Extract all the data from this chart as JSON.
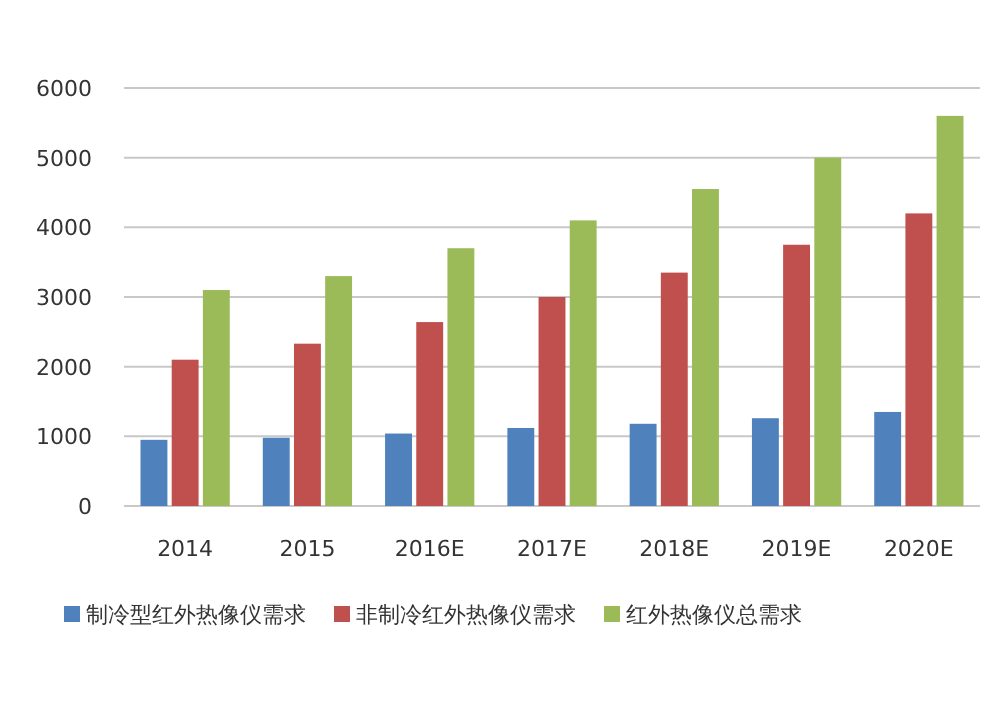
{
  "chart_data": {
    "type": "bar",
    "categories": [
      "2014",
      "2015",
      "2016E",
      "2017E",
      "2018E",
      "2019E",
      "2020E"
    ],
    "series": [
      {
        "name": "制冷型红外热像仪需求",
        "color": "#4f81bd",
        "values": [
          950,
          980,
          1040,
          1120,
          1180,
          1260,
          1350
        ]
      },
      {
        "name": "非制冷红外热像仪需求",
        "color": "#c0504d",
        "values": [
          2100,
          2330,
          2640,
          3000,
          3350,
          3750,
          4200
        ]
      },
      {
        "name": "红外热像仪总需求",
        "color": "#9bbb59",
        "values": [
          3100,
          3300,
          3700,
          4100,
          4550,
          5000,
          5600
        ]
      }
    ],
    "ylim": [
      0,
      6000
    ],
    "yticks": [
      0,
      1000,
      2000,
      3000,
      4000,
      5000,
      6000
    ],
    "grid": "y",
    "legend": "bottom"
  }
}
